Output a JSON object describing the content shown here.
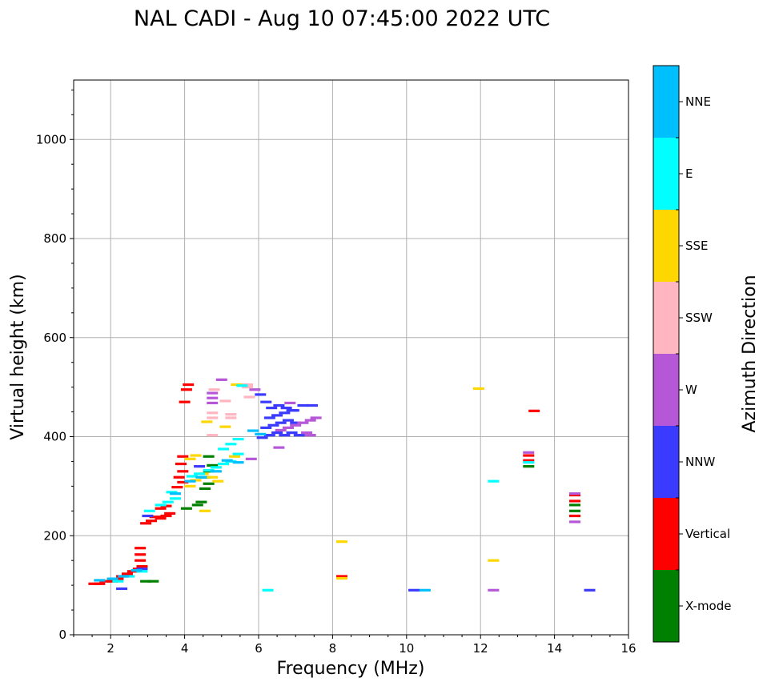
{
  "chart_data": {
    "type": "scatter",
    "title": "NAL CADI - Aug 10 07:45:00 2022 UTC",
    "xlabel": "Frequency (MHz)",
    "ylabel": "Virtual height (km)",
    "xlim": [
      1,
      16
    ],
    "ylim": [
      0,
      1120
    ],
    "xticks": [
      2,
      4,
      6,
      8,
      10,
      12,
      14,
      16
    ],
    "yticks": [
      0,
      200,
      400,
      600,
      800,
      1000
    ],
    "grid": true,
    "colorbar": {
      "label": "Azimuth Direction",
      "categories": [
        {
          "name": "X-mode",
          "color": "#008000"
        },
        {
          "name": "Vertical",
          "color": "#ff0000"
        },
        {
          "name": "NNW",
          "color": "#3b3bff"
        },
        {
          "name": "W",
          "color": "#b657d8"
        },
        {
          "name": "SSW",
          "color": "#ffb6c1"
        },
        {
          "name": "SSE",
          "color": "#ffd700"
        },
        {
          "name": "E",
          "color": "#00ffff"
        },
        {
          "name": "NNE",
          "color": "#00bfff"
        }
      ]
    },
    "series": [
      {
        "name": "X-mode",
        "points": [
          [
            2.95,
            108
          ],
          [
            3.15,
            108
          ],
          [
            4.05,
            255
          ],
          [
            4.35,
            262
          ],
          [
            4.45,
            268
          ],
          [
            4.55,
            295
          ],
          [
            4.65,
            305
          ],
          [
            4.55,
            318
          ],
          [
            4.65,
            330
          ],
          [
            4.75,
            342
          ],
          [
            4.65,
            360
          ],
          [
            13.3,
            340
          ],
          [
            14.55,
            250
          ],
          [
            14.55,
            262
          ]
        ]
      },
      {
        "name": "Vertical",
        "points": [
          [
            1.55,
            103
          ],
          [
            1.7,
            103
          ],
          [
            1.85,
            108
          ],
          [
            2.05,
            108
          ],
          [
            2.2,
            113
          ],
          [
            2.3,
            118
          ],
          [
            2.45,
            123
          ],
          [
            2.6,
            128
          ],
          [
            2.75,
            133
          ],
          [
            2.85,
            138
          ],
          [
            2.8,
            150
          ],
          [
            2.8,
            162
          ],
          [
            2.8,
            175
          ],
          [
            2.95,
            225
          ],
          [
            3.1,
            230
          ],
          [
            3.2,
            238
          ],
          [
            3.35,
            235
          ],
          [
            3.5,
            240
          ],
          [
            3.6,
            245
          ],
          [
            3.35,
            255
          ],
          [
            3.5,
            260
          ],
          [
            3.8,
            298
          ],
          [
            3.95,
            308
          ],
          [
            3.85,
            318
          ],
          [
            3.95,
            330
          ],
          [
            3.9,
            345
          ],
          [
            3.95,
            360
          ],
          [
            4.0,
            470
          ],
          [
            4.05,
            495
          ],
          [
            4.1,
            505
          ],
          [
            13.3,
            352
          ],
          [
            13.3,
            362
          ],
          [
            13.45,
            452
          ],
          [
            14.55,
            240
          ],
          [
            14.55,
            270
          ],
          [
            14.55,
            282
          ],
          [
            8.25,
            118
          ]
        ]
      },
      {
        "name": "NNW",
        "points": [
          [
            6.1,
            398
          ],
          [
            6.3,
            403
          ],
          [
            6.5,
            408
          ],
          [
            6.7,
            403
          ],
          [
            6.9,
            408
          ],
          [
            7.1,
            403
          ],
          [
            6.2,
            418
          ],
          [
            6.4,
            423
          ],
          [
            6.6,
            428
          ],
          [
            6.8,
            433
          ],
          [
            7.0,
            428
          ],
          [
            6.3,
            438
          ],
          [
            6.5,
            443
          ],
          [
            6.7,
            448
          ],
          [
            6.9,
            453
          ],
          [
            6.35,
            458
          ],
          [
            6.55,
            463
          ],
          [
            6.75,
            458
          ],
          [
            6.95,
            453
          ],
          [
            7.2,
            463
          ],
          [
            7.45,
            463
          ],
          [
            6.05,
            485
          ],
          [
            6.2,
            470
          ],
          [
            10.2,
            90
          ],
          [
            14.95,
            90
          ],
          [
            2.3,
            93
          ],
          [
            2.85,
            133
          ],
          [
            3.0,
            240
          ],
          [
            4.4,
            340
          ]
        ]
      },
      {
        "name": "W",
        "points": [
          [
            6.6,
            413
          ],
          [
            6.8,
            418
          ],
          [
            7.0,
            423
          ],
          [
            7.2,
            428
          ],
          [
            7.4,
            433
          ],
          [
            7.55,
            438
          ],
          [
            7.3,
            408
          ],
          [
            7.4,
            403
          ],
          [
            6.85,
            468
          ],
          [
            6.55,
            378
          ],
          [
            5.8,
            355
          ],
          [
            5.9,
            495
          ],
          [
            4.75,
            468
          ],
          [
            4.75,
            478
          ],
          [
            4.75,
            488
          ],
          [
            5.0,
            515
          ],
          [
            13.3,
            368
          ],
          [
            14.55,
            228
          ],
          [
            14.55,
            285
          ],
          [
            12.35,
            90
          ]
        ]
      },
      {
        "name": "SSW",
        "points": [
          [
            4.75,
            403
          ],
          [
            4.75,
            438
          ],
          [
            4.75,
            448
          ],
          [
            5.25,
            438
          ],
          [
            5.25,
            445
          ],
          [
            5.1,
            472
          ],
          [
            5.7,
            500
          ],
          [
            5.7,
            505
          ],
          [
            5.75,
            480
          ],
          [
            4.8,
            495
          ]
        ]
      },
      {
        "name": "SSE",
        "points": [
          [
            4.15,
            300
          ],
          [
            4.3,
            312
          ],
          [
            4.5,
            325
          ],
          [
            4.75,
            318
          ],
          [
            4.9,
            310
          ],
          [
            5.05,
            345
          ],
          [
            5.35,
            360
          ],
          [
            4.15,
            355
          ],
          [
            4.3,
            362
          ],
          [
            4.55,
            250
          ],
          [
            4.6,
            430
          ],
          [
            5.1,
            420
          ],
          [
            5.4,
            505
          ],
          [
            11.95,
            497
          ],
          [
            12.35,
            150
          ],
          [
            8.25,
            188
          ],
          [
            8.25,
            114
          ]
        ]
      },
      {
        "name": "E",
        "points": [
          [
            2.2,
            108
          ],
          [
            2.5,
            118
          ],
          [
            2.85,
            128
          ],
          [
            3.05,
            250
          ],
          [
            3.35,
            262
          ],
          [
            3.55,
            268
          ],
          [
            3.75,
            275
          ],
          [
            3.65,
            288
          ],
          [
            4.2,
            320
          ],
          [
            4.4,
            325
          ],
          [
            4.65,
            332
          ],
          [
            4.85,
            338
          ],
          [
            5.05,
            345
          ],
          [
            5.25,
            350
          ],
          [
            5.45,
            365
          ],
          [
            5.05,
            375
          ],
          [
            5.25,
            385
          ],
          [
            5.45,
            395
          ],
          [
            5.55,
            503
          ],
          [
            6.25,
            90
          ],
          [
            12.35,
            310
          ],
          [
            13.3,
            348
          ]
        ]
      },
      {
        "name": "NNE",
        "points": [
          [
            1.7,
            110
          ],
          [
            2.05,
            113
          ],
          [
            2.35,
            118
          ],
          [
            2.7,
            130
          ],
          [
            3.75,
            285
          ],
          [
            4.15,
            310
          ],
          [
            4.45,
            318
          ],
          [
            4.85,
            330
          ],
          [
            5.15,
            352
          ],
          [
            5.45,
            348
          ],
          [
            6.05,
            405
          ],
          [
            5.85,
            412
          ],
          [
            10.5,
            90
          ]
        ]
      }
    ]
  }
}
